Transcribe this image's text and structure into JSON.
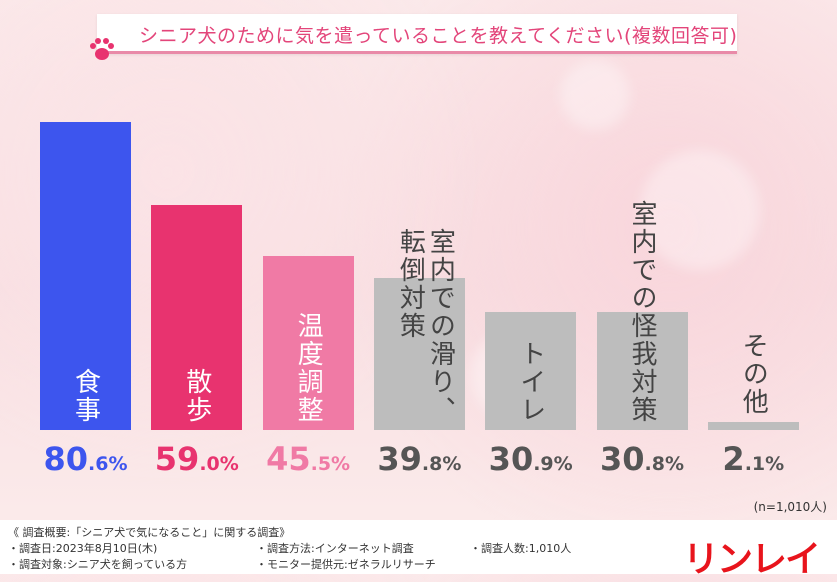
{
  "title": "シニア犬のために気を遣っていることを教えてください(複数回答可)",
  "colors": {
    "blue": "#3d55ee",
    "pink": "#e8336f",
    "light_pink": "#f07aa5",
    "gray": "#bdbdbd",
    "title": "#e3457a",
    "logo": "#e8141c"
  },
  "chart_data": {
    "type": "bar",
    "title": "シニア犬のために気を遣っていることを教えてください(複数回答可)",
    "categories": [
      "食事",
      "散歩",
      "温度調整",
      "室内での滑り、\n転倒対策",
      "トイレ",
      "室内での怪我対策",
      "その他"
    ],
    "values": [
      80.6,
      59.0,
      45.5,
      39.8,
      30.9,
      30.8,
      2.1
    ],
    "value_labels": [
      "80.6%",
      "59.0%",
      "45.5%",
      "39.8%",
      "30.9%",
      "30.8%",
      "2.1%"
    ],
    "bar_colors": [
      "#3d55ee",
      "#e8336f",
      "#f07aa5",
      "#bdbdbd",
      "#bdbdbd",
      "#bdbdbd",
      "#bdbdbd"
    ],
    "ylim": [
      0,
      100
    ],
    "grid": false,
    "note": "(n=1,010人)"
  },
  "footer": {
    "summary": "《 調査概要:「シニア犬で気になること」に関する調査》",
    "date": "・調査日:2023年8月10日(木)",
    "target": "・調査対象:シニア犬を飼っている方",
    "method": "・調査方法:インターネット調査",
    "provider": "・モニター提供元:ゼネラルリサーチ",
    "count": "・調査人数:1,010人",
    "logo": "リンレイ"
  }
}
